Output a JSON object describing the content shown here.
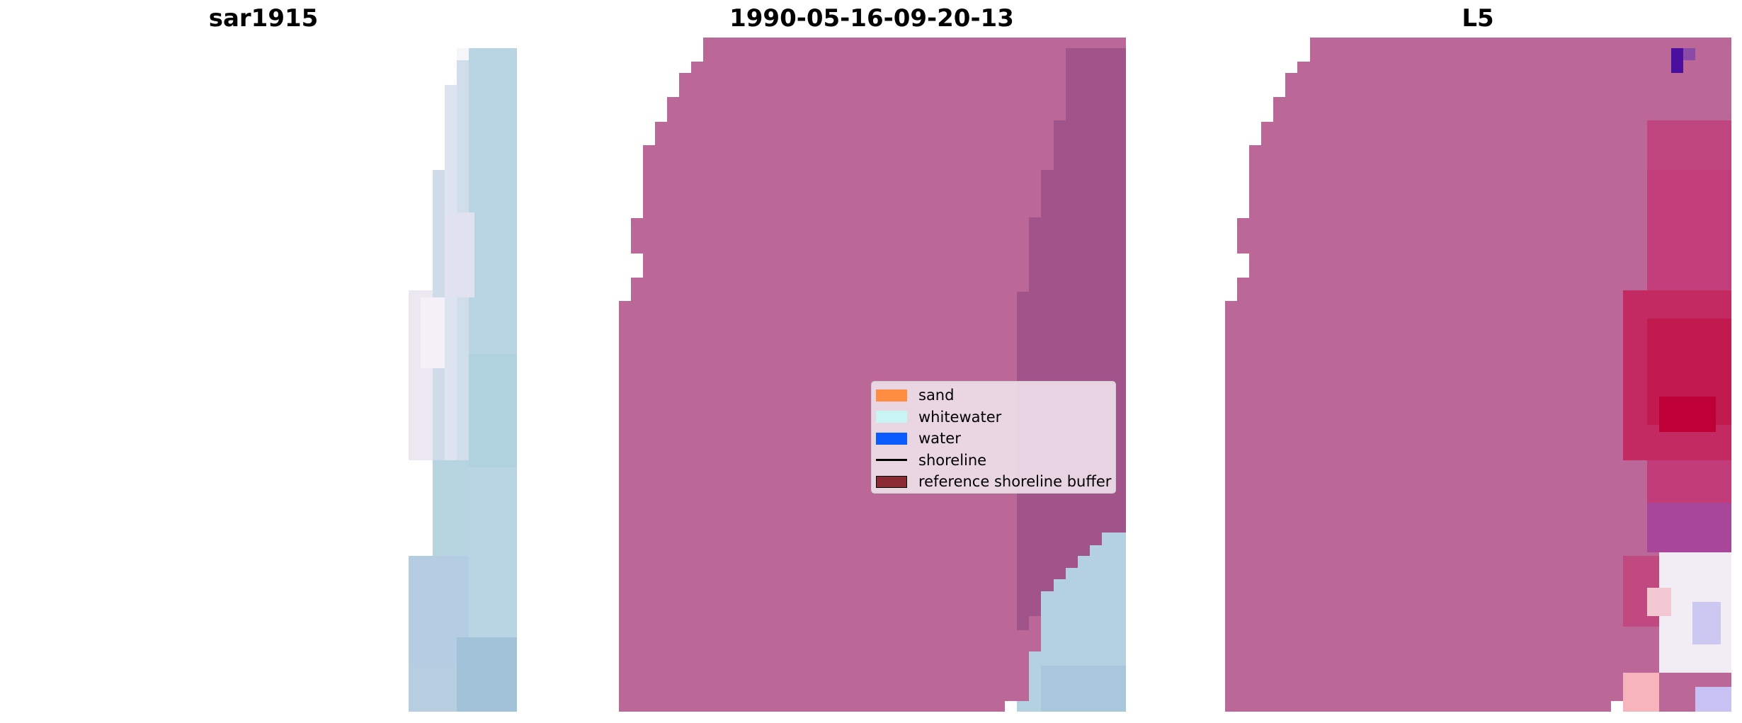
{
  "titles": {
    "left": "sar1915",
    "middle": "1990-05-16-09-20-13",
    "right": "L5"
  },
  "legend": [
    {
      "label": "sand",
      "color": "#ff8c40",
      "kind": "patch"
    },
    {
      "label": "whitewater",
      "color": "#c8f5f3",
      "kind": "patch"
    },
    {
      "label": "water",
      "color": "#0a5cff",
      "kind": "patch"
    },
    {
      "label": "shoreline",
      "color": "#000000",
      "kind": "line"
    },
    {
      "label": "reference shoreline buffer",
      "color": "#8b2a32",
      "kind": "patch"
    }
  ],
  "colors": {
    "buffer_overlay": "#bb6797",
    "buffer_dark": "#9e5288",
    "image_light_blue": "#b7d3e3",
    "image_lavender": "#e5e2f0",
    "index_high": "#c0002f",
    "index_low": "#3a00a0"
  }
}
